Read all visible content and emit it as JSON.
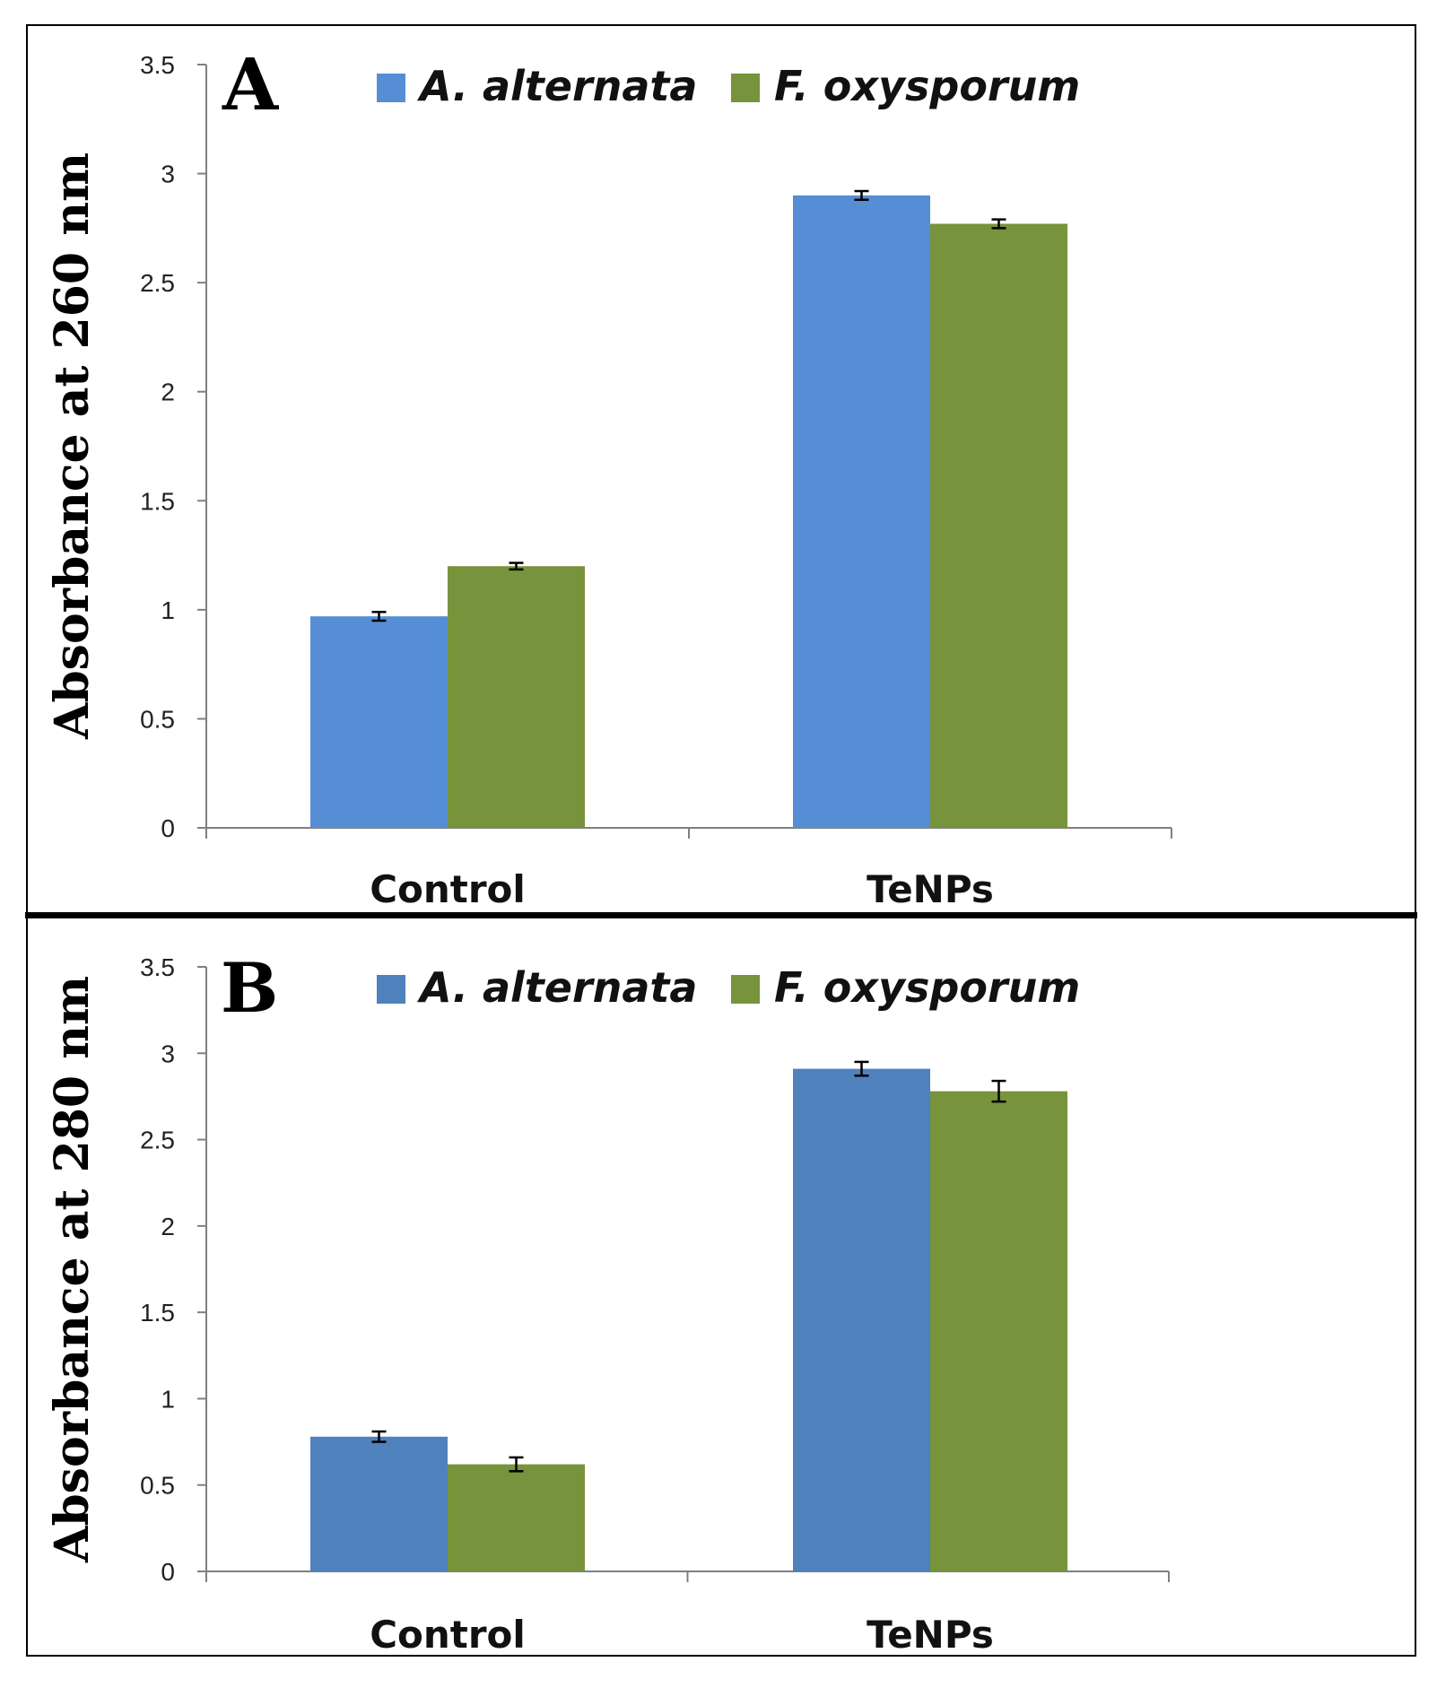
{
  "colors": {
    "border": "#000000",
    "axis": "#7f7f7f",
    "divider": "#000000",
    "errorbar": "#000000"
  },
  "chart_data": [
    {
      "type": "bar",
      "panel": "A",
      "title": "",
      "ylabel": "Absorbance at 260 nm",
      "xlabel": "",
      "ylim": [
        0,
        3.5
      ],
      "yticks": [
        "0",
        "0.5",
        "1",
        "1.5",
        "2",
        "2.5",
        "3",
        "3.5"
      ],
      "grid": false,
      "legend_position": "top",
      "categories": [
        "Control",
        "TeNPs"
      ],
      "series": [
        {
          "name": "A. alternata",
          "color": "#558ed5",
          "values": [
            0.97,
            2.9
          ],
          "errors": [
            0.02,
            0.02
          ]
        },
        {
          "name": "F. oxysporum",
          "color": "#77933c",
          "values": [
            1.2,
            2.77
          ],
          "errors": [
            0.015,
            0.02
          ]
        }
      ]
    },
    {
      "type": "bar",
      "panel": "B",
      "title": "",
      "ylabel": "Absorbance at 280 nm",
      "xlabel": "",
      "ylim": [
        0,
        3.5
      ],
      "yticks": [
        "0",
        "0.5",
        "1",
        "1.5",
        "2",
        "2.5",
        "3",
        "3.5"
      ],
      "grid": false,
      "legend_position": "top",
      "categories": [
        "Control",
        "TeNPs"
      ],
      "series": [
        {
          "name": "A. alternata",
          "color": "#4f81bd",
          "values": [
            0.78,
            2.91
          ],
          "errors": [
            0.03,
            0.04
          ]
        },
        {
          "name": "F. oxysporum",
          "color": "#77933c",
          "values": [
            0.62,
            2.78
          ],
          "errors": [
            0.04,
            0.06
          ]
        }
      ]
    }
  ]
}
